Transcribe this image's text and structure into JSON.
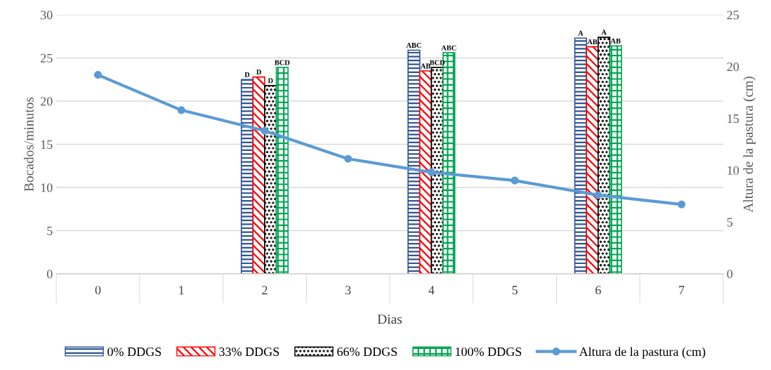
{
  "chart_data": {
    "type": "bar",
    "xlabel": "Dias",
    "ylabel": "Bocados/minutos",
    "y2label": "Altura de la pastura (cm)",
    "categories": [
      "0",
      "1",
      "2",
      "3",
      "4",
      "5",
      "6",
      "7"
    ],
    "series": [
      {
        "name": "0% DDGS",
        "color": "#2f5597",
        "values": [
          null,
          null,
          22.5,
          null,
          25.9,
          null,
          27.3,
          null
        ],
        "value_labels": [
          null,
          null,
          "D",
          null,
          "ABC",
          null,
          "A",
          null
        ]
      },
      {
        "name": "33% DDGS",
        "color": "#ff0000",
        "values": [
          null,
          null,
          22.8,
          null,
          23.5,
          null,
          26.3,
          null
        ],
        "value_labels": [
          null,
          null,
          "D",
          null,
          "AB",
          null,
          "AB",
          null
        ]
      },
      {
        "name": "66% DDGS",
        "color": "#000000",
        "values": [
          null,
          null,
          21.8,
          null,
          23.9,
          null,
          27.4,
          null
        ],
        "value_labels": [
          null,
          null,
          "D",
          null,
          "BCD",
          null,
          "A",
          null
        ]
      },
      {
        "name": "100% DDGS",
        "color": "#00a651",
        "values": [
          null,
          null,
          23.9,
          null,
          25.6,
          null,
          26.4,
          null
        ],
        "value_labels": [
          null,
          null,
          "BCD",
          null,
          "ABC",
          null,
          "AB",
          null
        ]
      },
      {
        "name": "Altura de la pastura (cm)",
        "type": "line",
        "axis": "y2",
        "color": "#5b9bd5",
        "marker": "circle",
        "values": [
          19.2,
          15.8,
          13.8,
          11.1,
          9.8,
          9.0,
          7.6,
          6.7
        ]
      }
    ],
    "ylim": [
      0,
      30
    ],
    "yticks": [
      0,
      5,
      10,
      15,
      20,
      25,
      30
    ],
    "y2lim": [
      0,
      25
    ],
    "y2ticks": [
      0,
      5,
      10,
      15,
      20,
      25
    ],
    "grid": "y",
    "legend": "bottom"
  }
}
